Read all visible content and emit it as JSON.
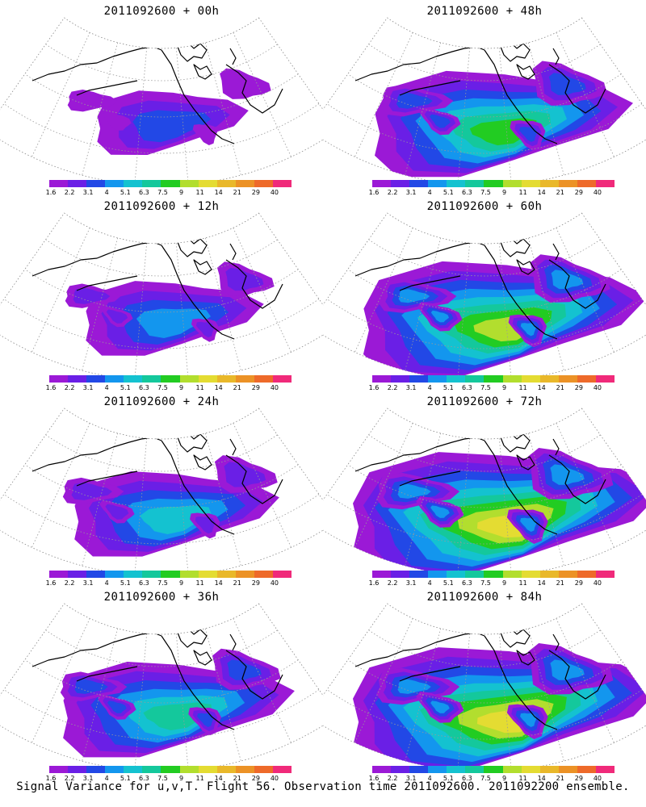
{
  "caption": "Signal Variance for u,v,T. Flight 56. Observation time 2011092600. 2011092200 ensemble.",
  "panels": [
    {
      "title": "2011092600 + 00h",
      "forecast_hour": 0
    },
    {
      "title": "2011092600 + 48h",
      "forecast_hour": 48
    },
    {
      "title": "2011092600 + 12h",
      "forecast_hour": 12
    },
    {
      "title": "2011092600 + 60h",
      "forecast_hour": 60
    },
    {
      "title": "2011092600 + 24h",
      "forecast_hour": 24
    },
    {
      "title": "2011092600 + 72h",
      "forecast_hour": 72
    },
    {
      "title": "2011092600 + 36h",
      "forecast_hour": 36
    },
    {
      "title": "2011092600 + 84h",
      "forecast_hour": 84
    }
  ],
  "colorbar": {
    "labels": [
      "1.6",
      "2.2",
      "3.1",
      "4",
      "5.1",
      "6.3",
      "7.5",
      "9",
      "11",
      "14",
      "21",
      "29",
      "40"
    ],
    "colors": [
      "#9b19d6",
      "#6a1fe6",
      "#2248e6",
      "#1396ee",
      "#14c2d0",
      "#14c89c",
      "#22cc22",
      "#b2de2e",
      "#e4dc32",
      "#e9b82a",
      "#ec9226",
      "#ee6a2a",
      "#f02a7a"
    ]
  }
}
